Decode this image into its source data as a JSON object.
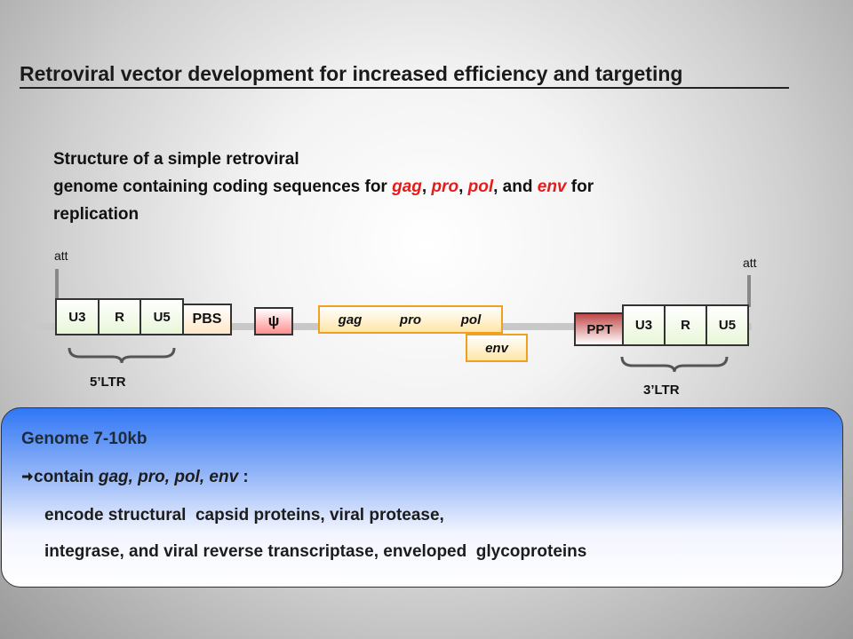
{
  "title": "Retroviral vector development for increased efficiency and targeting",
  "description": {
    "line1": "Structure of a simple retroviral",
    "line2_parts": [
      "genome containing coding sequences for ",
      "gag",
      ", ",
      "pro",
      ", ",
      "pol",
      ", and ",
      "env",
      " for"
    ],
    "line3": "replication"
  },
  "diagram": {
    "att_left": "att",
    "att_right": "att",
    "ltr5": {
      "segments": [
        "U3",
        "R",
        "U5"
      ],
      "label": "5’LTR"
    },
    "pbs": "PBS",
    "psi": "ψ",
    "genes": [
      "gag",
      "pro",
      "pol"
    ],
    "env": "env",
    "ppt": "PPT",
    "ltr3": {
      "segments": [
        "U3",
        "R",
        "U5"
      ],
      "label": "3’LTR"
    }
  },
  "colors": {
    "highlight_red": "#e31c1c",
    "gene_border": "#f0a020",
    "info_blue": "#2f76f5"
  },
  "info_box": {
    "line1": "Genome 7-10kb",
    "line2_prefix": "contain ",
    "line2_genes": "gag, pro, pol, env",
    "line2_suffix": " :",
    "line3": "encode structural  capsid proteins, viral protease,",
    "line4": "integrase, and viral reverse transcriptase, enveloped  glycoproteins",
    "arrow_icon": "right-arrow-icon"
  }
}
